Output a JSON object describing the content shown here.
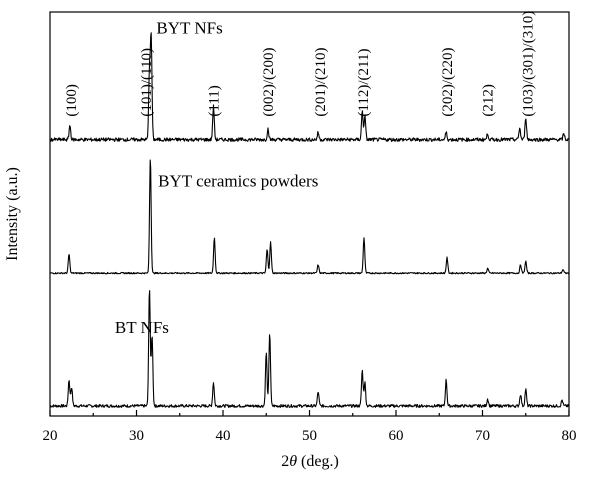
{
  "chart_data": {
    "type": "line",
    "title": "",
    "xlabel_prefix": "2",
    "xlabel_symbol": "θ",
    "xlabel_suffix": " (deg.)",
    "ylabel": "Intensity (a.u.)",
    "xlim": [
      20,
      80
    ],
    "ylim": [
      0,
      3.4
    ],
    "x_ticks": [
      "20",
      "30",
      "40",
      "50",
      "60",
      "70",
      "80"
    ],
    "x_tick_values": [
      20,
      30,
      40,
      50,
      60,
      70,
      80
    ],
    "grid": false,
    "series": [
      {
        "name": "BT NFs",
        "offset": 0.08,
        "noise": 0.012,
        "peaks": [
          {
            "x": 22.2,
            "h": 0.22
          },
          {
            "x": 22.5,
            "h": 0.16
          },
          {
            "x": 31.5,
            "h": 1.0
          },
          {
            "x": 31.8,
            "h": 0.6
          },
          {
            "x": 38.9,
            "h": 0.2
          },
          {
            "x": 45.0,
            "h": 0.45
          },
          {
            "x": 45.4,
            "h": 0.62
          },
          {
            "x": 51.0,
            "h": 0.12
          },
          {
            "x": 56.1,
            "h": 0.3
          },
          {
            "x": 56.4,
            "h": 0.2
          },
          {
            "x": 65.8,
            "h": 0.22
          },
          {
            "x": 70.6,
            "h": 0.06
          },
          {
            "x": 74.4,
            "h": 0.1
          },
          {
            "x": 75.0,
            "h": 0.14
          },
          {
            "x": 79.2,
            "h": 0.05
          }
        ]
      },
      {
        "name": "BYT ceramics powders",
        "offset": 1.2,
        "noise": 0.006,
        "peaks": [
          {
            "x": 22.2,
            "h": 0.16
          },
          {
            "x": 31.6,
            "h": 0.98
          },
          {
            "x": 39.0,
            "h": 0.3
          },
          {
            "x": 45.1,
            "h": 0.2
          },
          {
            "x": 45.5,
            "h": 0.26
          },
          {
            "x": 51.0,
            "h": 0.07
          },
          {
            "x": 56.3,
            "h": 0.3
          },
          {
            "x": 65.9,
            "h": 0.13
          },
          {
            "x": 70.6,
            "h": 0.04
          },
          {
            "x": 74.4,
            "h": 0.07
          },
          {
            "x": 75.0,
            "h": 0.1
          },
          {
            "x": 79.3,
            "h": 0.03
          }
        ]
      },
      {
        "name": "BYT NFs",
        "offset": 2.32,
        "noise": 0.015,
        "peaks": [
          {
            "x": 22.3,
            "h": 0.12
          },
          {
            "x": 31.5,
            "h": 0.58
          },
          {
            "x": 31.7,
            "h": 0.85
          },
          {
            "x": 38.9,
            "h": 0.28
          },
          {
            "x": 45.2,
            "h": 0.09
          },
          {
            "x": 51.0,
            "h": 0.06
          },
          {
            "x": 56.1,
            "h": 0.24
          },
          {
            "x": 56.4,
            "h": 0.2
          },
          {
            "x": 65.8,
            "h": 0.06
          },
          {
            "x": 70.6,
            "h": 0.05
          },
          {
            "x": 74.3,
            "h": 0.1
          },
          {
            "x": 75.0,
            "h": 0.19
          },
          {
            "x": 79.4,
            "h": 0.05
          }
        ]
      }
    ],
    "peak_labels": [
      {
        "text": "(100)",
        "x": 22.4
      },
      {
        "text": "(101)/(110)",
        "x": 31.1
      },
      {
        "text": "(111)",
        "x": 38.9
      },
      {
        "text": "(002)/(200)",
        "x": 45.2
      },
      {
        "text": "(201)/(210)",
        "x": 51.2
      },
      {
        "text": "(112)/(211)",
        "x": 56.2
      },
      {
        "text": "(202)/(220)",
        "x": 65.9
      },
      {
        "text": "(212)",
        "x": 70.6
      },
      {
        "text": "(103)/(301)/(310)",
        "x": 75.2
      }
    ]
  }
}
